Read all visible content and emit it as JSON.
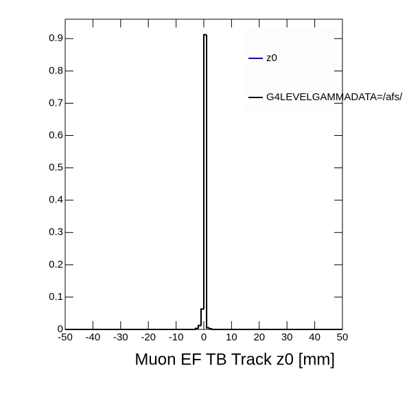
{
  "chart_data": {
    "type": "histogram",
    "x_label": "Muon EF TB Track z0 [mm]",
    "bins": [
      -50,
      -3,
      -2,
      -1,
      0,
      1,
      2,
      3,
      50
    ],
    "series": [
      {
        "name": "z0",
        "color": "#0000cc",
        "values": [
          0,
          0.003,
          0.012,
          0.063,
          0.912,
          0.005,
          0.002,
          0
        ]
      },
      {
        "name": "G4LEVELGAMMADATA=/afs/",
        "color": "#000000",
        "values": [
          0,
          0.003,
          0.012,
          0.063,
          0.912,
          0.005,
          0.002,
          0
        ]
      }
    ],
    "xlim": [
      -50,
      50
    ],
    "xticks": [
      -50,
      -40,
      -30,
      -20,
      -10,
      0,
      10,
      20,
      30,
      40,
      50
    ],
    "ylim": [
      0,
      0.96
    ],
    "yticks": [
      0,
      0.1,
      0.2,
      0.3,
      0.4,
      0.5,
      0.6,
      0.7,
      0.8,
      0.9
    ],
    "legend": "top-right"
  }
}
